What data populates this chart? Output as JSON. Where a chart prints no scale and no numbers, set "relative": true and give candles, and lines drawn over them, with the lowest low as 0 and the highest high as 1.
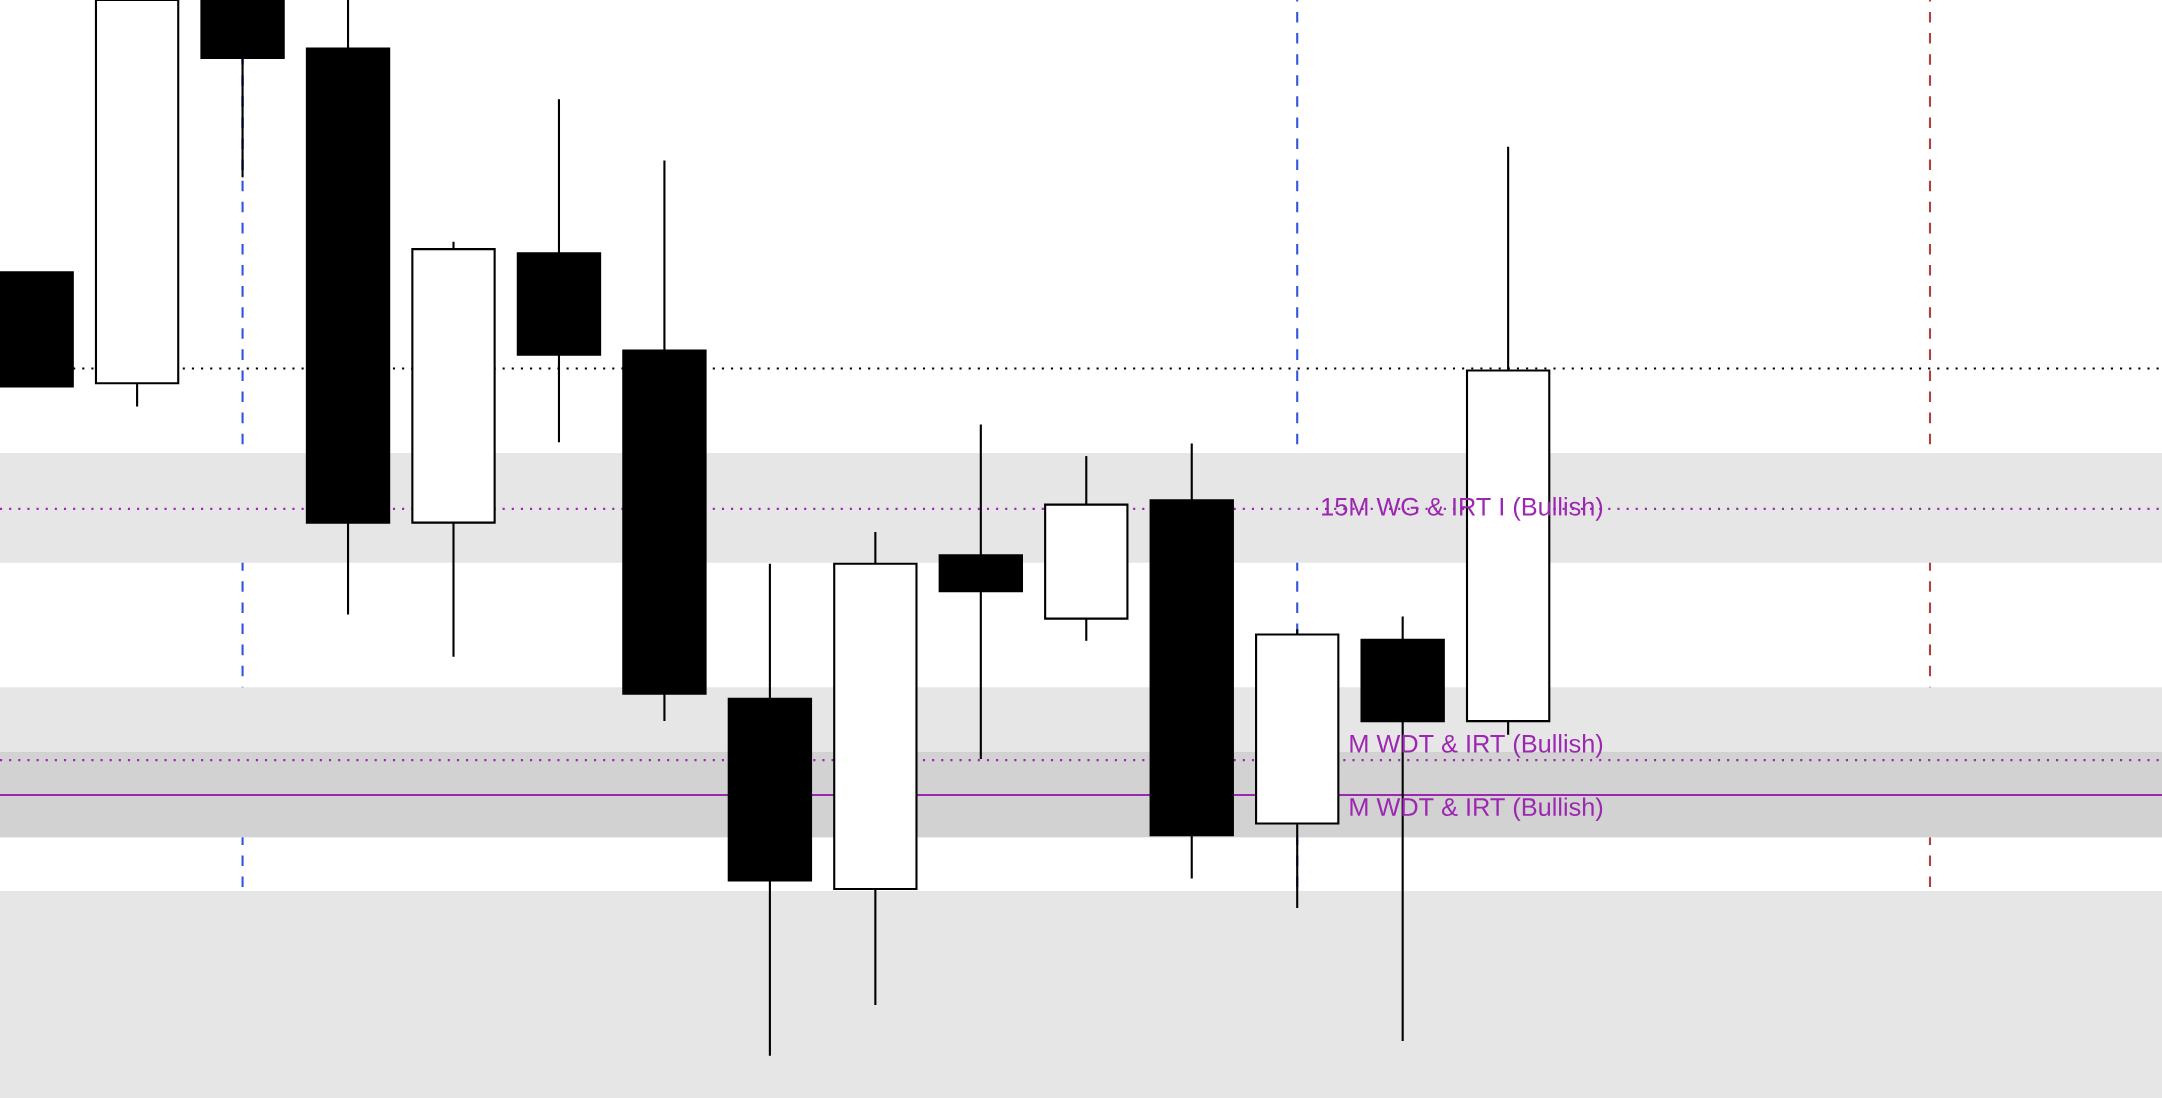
{
  "chart_data": {
    "type": "candlestick",
    "relative": true,
    "categories": [
      null,
      null,
      null,
      null,
      null,
      null,
      null,
      null,
      null,
      null,
      null,
      null,
      null,
      null,
      null
    ],
    "ohlc": [
      [
        0.742,
        0.742,
        0.634,
        0.634
      ],
      [
        0.637,
        1,
        0.615,
        1
      ],
      [
        1,
        1,
        0.832,
        0.945
      ],
      [
        0.954,
        1,
        0.418,
        0.505
      ],
      [
        0.505,
        0.771,
        0.378,
        0.764
      ],
      [
        0.76,
        0.906,
        0.581,
        0.664
      ],
      [
        0.668,
        0.848,
        0.317,
        0.343
      ],
      [
        0.338,
        0.466,
        0,
        0.166
      ],
      [
        0.158,
        0.496,
        0.048,
        0.466
      ],
      [
        0.474,
        0.598,
        0.281,
        0.44
      ],
      [
        0.414,
        0.568,
        0.393,
        0.522
      ],
      [
        0.526,
        0.58,
        0.168,
        0.209
      ],
      [
        0.22,
        0.404,
        0.14,
        0.399
      ],
      [
        0.394,
        0.416,
        0.014,
        0.317
      ],
      [
        0.317,
        0.861,
        0.304,
        0.649
      ]
    ],
    "bands": [
      {
        "axis": "y",
        "from": 0.467,
        "to": 0.571,
        "color": "#e6e6e6"
      },
      {
        "axis": "y",
        "from": 0.207,
        "to": 0.349,
        "color": "#e6e6e6"
      },
      {
        "axis": "y",
        "from": 0.207,
        "to": 0.288,
        "color": "#d2d2d2"
      },
      {
        "axis": "y",
        "from": -0.04,
        "to": 0.156,
        "color": "#e6e6e6"
      }
    ],
    "ref_lines": [
      {
        "axis": "y",
        "value": 0.651,
        "color": "#000000",
        "line_style": "dotted"
      },
      {
        "axis": "y",
        "value": 0.518,
        "color": "#9c27b0",
        "line_style": "dotted",
        "label": "15M WG & IRT I (Bullish)"
      },
      {
        "axis": "y",
        "value": 0.28,
        "color": "#9c27b0",
        "line_style": "dotted",
        "label": "M WDT & IRT (Bullish)"
      },
      {
        "axis": "y",
        "value": 0.247,
        "color": "#9c27b0",
        "line_style": "solid",
        "label": "M WDT & IRT (Bullish)"
      }
    ]
  }
}
